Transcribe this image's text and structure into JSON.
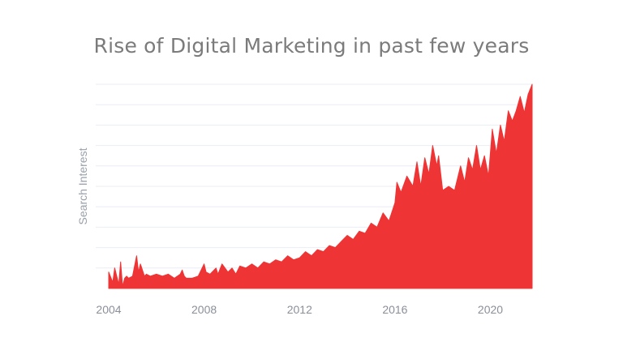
{
  "chart_data": {
    "type": "area",
    "title": "Rise of Digital Marketing in past few years",
    "xlabel": "",
    "ylabel": "Search Interest",
    "xlim": [
      2004.0,
      2021.75
    ],
    "ylim": [
      0,
      100
    ],
    "x_ticks": [
      2004,
      2008,
      2012,
      2016,
      2020
    ],
    "y_tick_labels": [],
    "grid": true,
    "legend": "none",
    "series": [
      {
        "color": "#ee3434",
        "x": [
          2004.0,
          2004.17,
          2004.25,
          2004.42,
          2004.5,
          2004.58,
          2004.67,
          2004.75,
          2004.83,
          2005.0,
          2005.17,
          2005.25,
          2005.33,
          2005.5,
          2005.58,
          2005.75,
          2006.0,
          2006.25,
          2006.5,
          2006.75,
          2007.0,
          2007.08,
          2007.17,
          2007.25,
          2007.5,
          2007.75,
          2008.0,
          2008.08,
          2008.25,
          2008.5,
          2008.58,
          2008.75,
          2009.0,
          2009.17,
          2009.33,
          2009.5,
          2009.75,
          2010.0,
          2010.25,
          2010.5,
          2010.75,
          2011.0,
          2011.25,
          2011.5,
          2011.75,
          2012.0,
          2012.25,
          2012.5,
          2012.75,
          2013.0,
          2013.25,
          2013.5,
          2013.75,
          2014.0,
          2014.25,
          2014.5,
          2014.75,
          2015.0,
          2015.25,
          2015.5,
          2015.75,
          2016.0,
          2016.08,
          2016.25,
          2016.5,
          2016.75,
          2016.92,
          2017.08,
          2017.25,
          2017.42,
          2017.58,
          2017.75,
          2017.83,
          2018.0,
          2018.25,
          2018.5,
          2018.75,
          2018.92,
          2019.08,
          2019.25,
          2019.42,
          2019.58,
          2019.75,
          2019.92,
          2020.08,
          2020.25,
          2020.42,
          2020.58,
          2020.75,
          2020.92,
          2021.08,
          2021.25,
          2021.42,
          2021.58,
          2021.75
        ],
        "values": [
          8,
          3,
          10,
          2,
          13,
          1,
          5,
          6,
          5,
          6,
          16,
          8,
          12,
          6,
          7,
          6,
          7,
          6,
          7,
          5,
          7,
          9,
          6,
          5,
          5,
          6,
          12,
          8,
          7,
          10,
          7,
          12,
          8,
          10,
          7,
          11,
          10,
          12,
          10,
          13,
          12,
          14,
          13,
          16,
          14,
          15,
          18,
          16,
          19,
          18,
          21,
          20,
          23,
          26,
          24,
          28,
          27,
          32,
          30,
          37,
          33,
          42,
          52,
          47,
          55,
          50,
          62,
          50,
          64,
          56,
          70,
          60,
          65,
          48,
          50,
          48,
          60,
          52,
          64,
          58,
          70,
          58,
          65,
          55,
          78,
          66,
          80,
          72,
          87,
          82,
          87,
          94,
          86,
          95,
          100
        ]
      }
    ]
  }
}
